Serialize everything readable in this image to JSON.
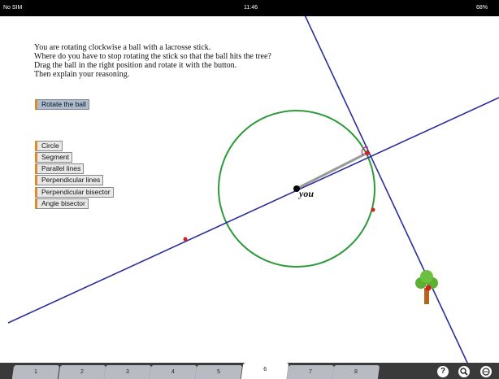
{
  "status_bar": {
    "carrier": "No SIM",
    "time": "11:46",
    "battery": "68%"
  },
  "instructions": [
    "You are rotating clockwise a ball with a lacrosse stick.",
    "Where do you have to stop rotating the stick so that the ball hits the tree?",
    "Drag the ball in the right position and rotate it with the button.",
    "Then explain your reasoning."
  ],
  "rotate_button": "Rotate the ball",
  "tools": [
    "Circle",
    "Segment",
    "Parallel lines",
    "Perpendicular lines",
    "Perpendicular bisector",
    "Angle bisector"
  ],
  "point_label": "you",
  "tabs": [
    "1",
    "2",
    "3",
    "4",
    "5",
    "6",
    "7",
    "8"
  ],
  "help_icon": "?"
}
